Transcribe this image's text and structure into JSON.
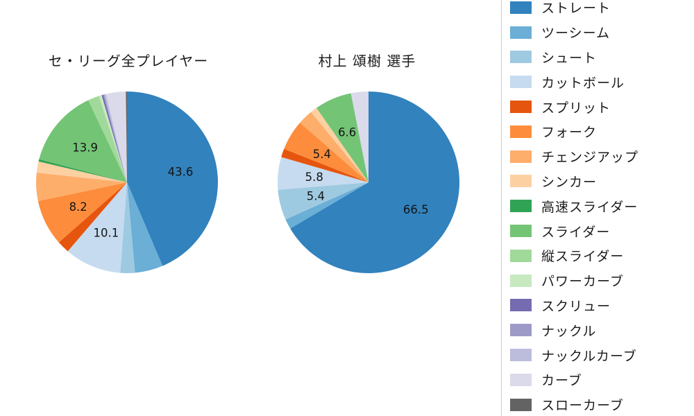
{
  "page": {
    "background_color": "#ffffff",
    "text_color": "#1a1a1a"
  },
  "legend": {
    "position": "right",
    "border_color": "#cccccc",
    "items": [
      {
        "key": "straight",
        "label": "ストレート",
        "color": "#3182bd"
      },
      {
        "key": "two-seam",
        "label": "ツーシーム",
        "color": "#6baed6"
      },
      {
        "key": "shoot",
        "label": "シュート",
        "color": "#9ecae1"
      },
      {
        "key": "cut-ball",
        "label": "カットボール",
        "color": "#c6dbef"
      },
      {
        "key": "split",
        "label": "スプリット",
        "color": "#e6550d"
      },
      {
        "key": "fork",
        "label": "フォーク",
        "color": "#fd8d3c"
      },
      {
        "key": "changeup",
        "label": "チェンジアップ",
        "color": "#fdae6b"
      },
      {
        "key": "sinker",
        "label": "シンカー",
        "color": "#fdd0a2"
      },
      {
        "key": "fast-slider",
        "label": "高速スライダー",
        "color": "#31a354"
      },
      {
        "key": "slider",
        "label": "スライダー",
        "color": "#74c476"
      },
      {
        "key": "vertical-slider",
        "label": "縦スライダー",
        "color": "#a1d99b"
      },
      {
        "key": "power-curve",
        "label": "パワーカーブ",
        "color": "#c7e9c0"
      },
      {
        "key": "screwball",
        "label": "スクリュー",
        "color": "#756bb1"
      },
      {
        "key": "knuckle",
        "label": "ナックル",
        "color": "#9e9ac8"
      },
      {
        "key": "knuckle-curve",
        "label": "ナックルカーブ",
        "color": "#bcbddc"
      },
      {
        "key": "curve",
        "label": "カーブ",
        "color": "#dadaeb"
      },
      {
        "key": "slow-curve",
        "label": "スローカーブ",
        "color": "#636363"
      }
    ]
  },
  "chart_data": [
    {
      "type": "pie",
      "title": "セ・リーグ全プレイヤー",
      "start_angle": "12-oclock",
      "direction": "clockwise",
      "min_label_value": 5.4,
      "categories": [
        "ストレート",
        "ツーシーム",
        "シュート",
        "カットボール",
        "スプリット",
        "フォーク",
        "チェンジアップ",
        "シンカー",
        "高速スライダー",
        "スライダー",
        "縦スライダー",
        "パワーカーブ",
        "スクリュー",
        "ナックル",
        "ナックルカーブ",
        "カーブ",
        "スローカーブ"
      ],
      "values": [
        43.6,
        5.0,
        2.6,
        10.1,
        2.2,
        8.2,
        5.0,
        2.0,
        0.4,
        13.9,
        2.0,
        0.5,
        0.3,
        0.2,
        0.3,
        3.5,
        0.2
      ],
      "labeled_values": [
        43.6,
        10.1,
        8.2,
        13.9
      ]
    },
    {
      "type": "pie",
      "title": "村上 頌樹 選手",
      "start_angle": "12-oclock",
      "direction": "clockwise",
      "min_label_value": 5.4,
      "categories": [
        "ストレート",
        "ツーシーム",
        "シュート",
        "カットボール",
        "スプリット",
        "フォーク",
        "チェンジアップ",
        "シンカー",
        "高速スライダー",
        "スライダー",
        "縦スライダー",
        "パワーカーブ",
        "スクリュー",
        "ナックル",
        "ナックルカーブ",
        "カーブ",
        "スローカーブ"
      ],
      "values": [
        66.5,
        1.8,
        5.4,
        5.8,
        1.5,
        5.4,
        2.7,
        1.2,
        0,
        6.6,
        0,
        0,
        0,
        0,
        0,
        3.1,
        0
      ],
      "labeled_values": [
        66.5,
        5.4,
        5.8,
        5.4,
        6.6
      ]
    }
  ]
}
